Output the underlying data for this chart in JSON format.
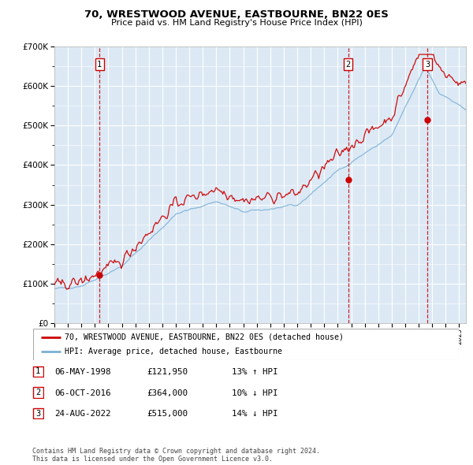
{
  "title": "70, WRESTWOOD AVENUE, EASTBOURNE, BN22 0ES",
  "subtitle": "Price paid vs. HM Land Registry's House Price Index (HPI)",
  "legend_label_red": "70, WRESTWOOD AVENUE, EASTBOURNE, BN22 0ES (detached house)",
  "legend_label_blue": "HPI: Average price, detached house, Eastbourne",
  "footer1": "Contains HM Land Registry data © Crown copyright and database right 2024.",
  "footer2": "This data is licensed under the Open Government Licence v3.0.",
  "transactions": [
    {
      "num": 1,
      "date": "06-MAY-1998",
      "price": 121950,
      "pct": "13%",
      "dir": "↑",
      "label": "1"
    },
    {
      "num": 2,
      "date": "06-OCT-2016",
      "price": 364000,
      "pct": "10%",
      "dir": "↓",
      "label": "2"
    },
    {
      "num": 3,
      "date": "24-AUG-2022",
      "price": 515000,
      "pct": "14%",
      "dir": "↓",
      "label": "3"
    }
  ],
  "transaction_years": [
    1998.35,
    2016.77,
    2022.65
  ],
  "transaction_prices": [
    121950,
    364000,
    515000
  ],
  "ylim": [
    0,
    700000
  ],
  "yticks": [
    0,
    100000,
    200000,
    300000,
    400000,
    500000,
    600000,
    700000
  ],
  "bg_color": "#dce9f5",
  "red_color": "#cc0000",
  "blue_color": "#7ab0d4",
  "grid_color": "#ffffff",
  "dashed_color": "#cc0000",
  "xlim_left": 1995,
  "xlim_right": 2025.5
}
